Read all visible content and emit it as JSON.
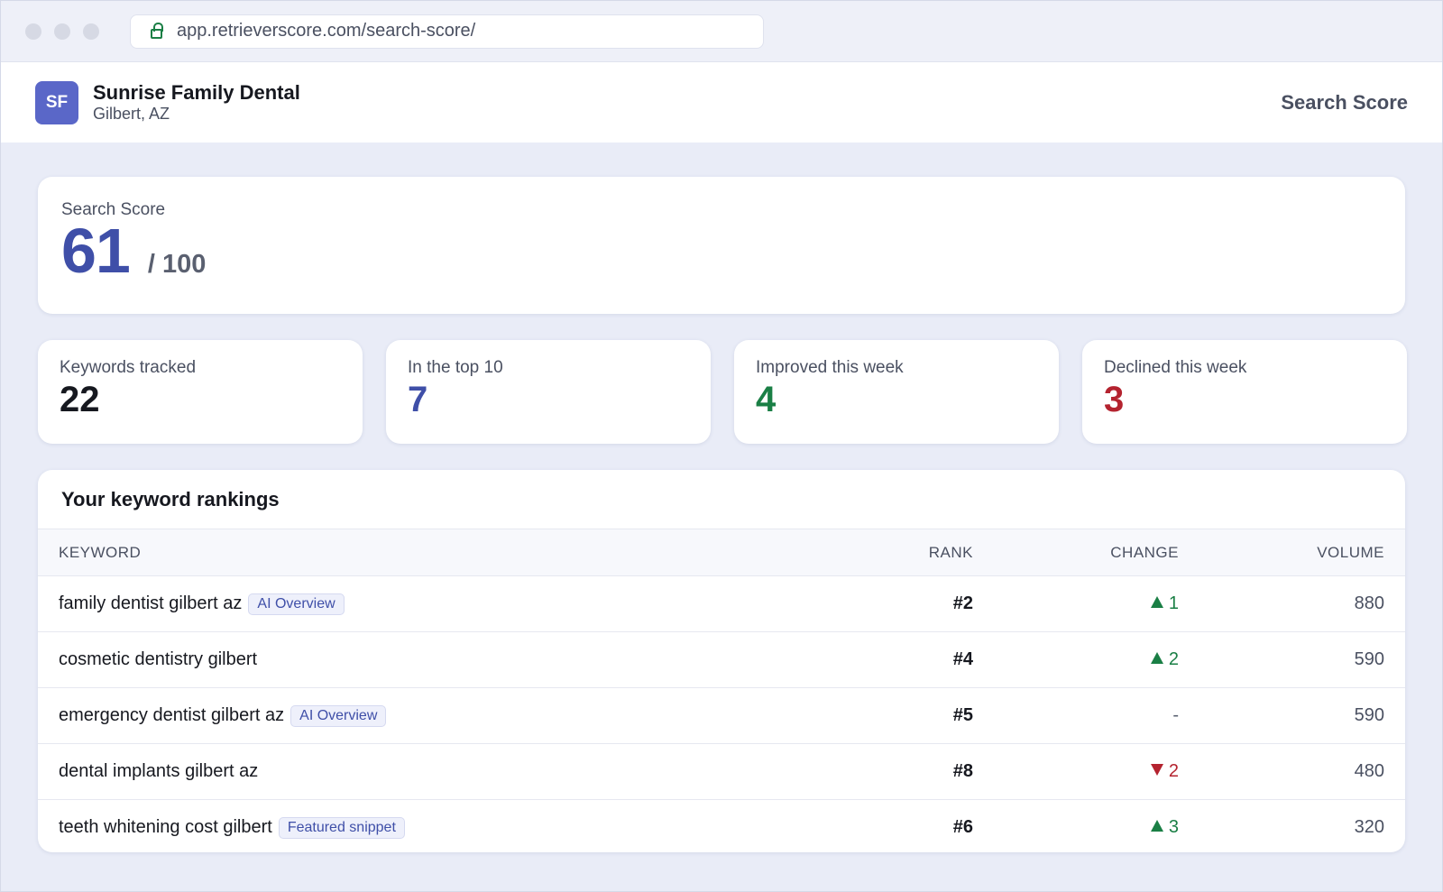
{
  "browser": {
    "url": "app.retrieverscore.com/search-score/"
  },
  "header": {
    "avatar": "SF",
    "name": "Sunrise Family Dental",
    "location": "Gilbert, AZ",
    "nav": "Search Score"
  },
  "score": {
    "label": "Search Score",
    "value": 61,
    "suffix": "/ 100"
  },
  "stats": [
    {
      "label": "Keywords tracked",
      "value": 22,
      "color": "#16181f"
    },
    {
      "label": "In the top 10",
      "value": 7,
      "color": "#3f4fa8"
    },
    {
      "label": "Improved this week",
      "value": 4,
      "color": "#1a7f45"
    },
    {
      "label": "Declined this week",
      "value": 3,
      "color": "#b4232f"
    }
  ],
  "table": {
    "title": "Your keyword rankings",
    "columns": [
      "KEYWORD",
      "RANK",
      "CHANGE",
      "VOLUME"
    ],
    "rows": [
      {
        "keyword": "family dentist gilbert az",
        "badge": "AI Overview",
        "rank": "#2",
        "change": "1",
        "direction": "up",
        "volume": 880
      },
      {
        "keyword": "cosmetic dentistry gilbert",
        "rank": "#4",
        "change": "2",
        "direction": "up",
        "volume": 590
      },
      {
        "keyword": "emergency dentist gilbert az",
        "badge": "AI Overview",
        "rank": "#5",
        "change": "-",
        "volume": 590
      },
      {
        "keyword": "dental implants gilbert az",
        "rank": "#8",
        "change": "2",
        "direction": "down",
        "volume": 480
      },
      {
        "keyword": "teeth whitening cost gilbert",
        "badge": "Featured snippet",
        "rank": "#6",
        "change": "3",
        "direction": "up",
        "volume": 320
      }
    ]
  }
}
